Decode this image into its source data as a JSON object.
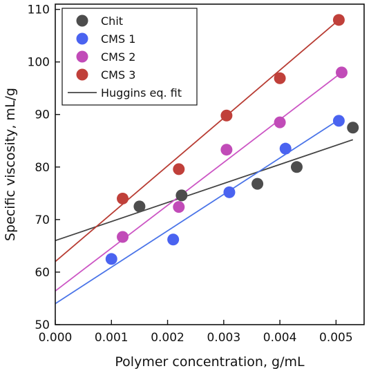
{
  "chart_data": {
    "type": "scatter",
    "title": "",
    "xlabel": "Polymer concentration, g/mL",
    "ylabel": "Specific viscosity, mL/g",
    "xlim": [
      0.0,
      0.0055
    ],
    "ylim": [
      50,
      111
    ],
    "xticks": [
      "0.000",
      "0.001",
      "0.002",
      "0.003",
      "0.004",
      "0.005"
    ],
    "xtick_values": [
      0.0,
      0.001,
      0.002,
      0.003,
      0.004,
      0.005
    ],
    "yticks": [
      "50",
      "60",
      "70",
      "80",
      "90",
      "100",
      "110"
    ],
    "ytick_values": [
      50,
      60,
      70,
      80,
      90,
      100,
      110
    ],
    "grid": false,
    "legend_position": "top-left",
    "fit_label": "Huggins eq. fit",
    "fit_color": "#444444",
    "series": [
      {
        "name": "Chit",
        "color": "#4d4d4d",
        "line_color": "#444444",
        "x": [
          0.0015,
          0.00225,
          0.0036,
          0.0043,
          0.0053
        ],
        "y": [
          72.5,
          74.6,
          76.8,
          80.0,
          87.5
        ],
        "fit": {
          "x": [
            0.0,
            0.0053
          ],
          "y": [
            66.0,
            85.2
          ]
        }
      },
      {
        "name": "CMS 1",
        "color": "#4a63f0",
        "line_color": "#4a74e8",
        "x": [
          0.001,
          0.0021,
          0.0031,
          0.0041,
          0.00505
        ],
        "y": [
          62.5,
          66.2,
          75.2,
          83.5,
          88.8
        ],
        "fit": {
          "x": [
            0.0,
            0.00505
          ],
          "y": [
            54.0,
            89.0
          ]
        }
      },
      {
        "name": "CMS 2",
        "color": "#c14bb8",
        "line_color": "#cc55c4",
        "x": [
          0.0012,
          0.0022,
          0.00305,
          0.004,
          0.0051
        ],
        "y": [
          66.7,
          72.4,
          83.3,
          88.5,
          98.0
        ],
        "fit": {
          "x": [
            0.0,
            0.0051
          ],
          "y": [
            56.4,
            98.0
          ]
        }
      },
      {
        "name": "CMS 3",
        "color": "#c0403a",
        "line_color": "#b83c33",
        "x": [
          0.0012,
          0.0022,
          0.00305,
          0.004,
          0.00505
        ],
        "y": [
          74.0,
          79.6,
          89.8,
          96.9,
          108.0
        ],
        "fit": {
          "x": [
            0.0,
            0.00505
          ],
          "y": [
            62.0,
            108.0
          ]
        }
      }
    ]
  }
}
